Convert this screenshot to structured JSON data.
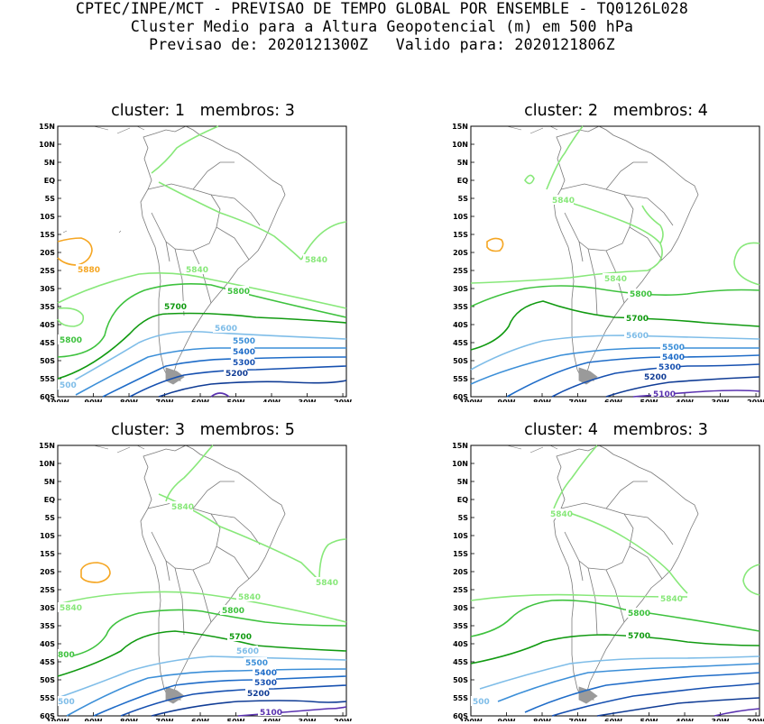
{
  "header": {
    "line1": "CPTEC/INPE/MCT - PREVISAO DE TEMPO GLOBAL POR ENSEMBLE - TQ0126L028",
    "line2": "Cluster Medio para a Altura Geopotencial (m) em 500 hPa",
    "line3": "Previsao de: 2020121300Z   Valido para: 2020121806Z"
  },
  "axes": {
    "lat_labels": [
      "15N",
      "10N",
      "5N",
      "EQ",
      "5S",
      "10S",
      "15S",
      "20S",
      "25S",
      "30S",
      "35S",
      "40S",
      "45S",
      "50S",
      "55S",
      "60S"
    ],
    "lon_labels": [
      "100W",
      "90W",
      "80W",
      "70W",
      "60W",
      "50W",
      "40W",
      "30W",
      "20W"
    ]
  },
  "colors": {
    "c5880": "#f5a623",
    "c5840": "#88e87a",
    "c5800": "#3ec23e",
    "c5700": "#119a11",
    "c5600": "#7fbde8",
    "c5500": "#3c8fd8",
    "c5400": "#1f6cc8",
    "c5300": "#1650b0",
    "c5200": "#103c95",
    "c5100": "#5a32b0",
    "coast": "#7a7a7a"
  },
  "panels": [
    {
      "title": "cluster: 1   membros: 3",
      "labels": {
        "l5880": "5880",
        "l5840a": "5840",
        "l5840b": "5840",
        "l5800a": "5800",
        "l5800b": "5800",
        "l5700": "5700",
        "l5600": "5600",
        "l5500": "5500",
        "l5400": "5400",
        "l5300": "5300",
        "l5200": "5200",
        "l500": "500"
      }
    },
    {
      "title": "cluster: 2   membros: 4",
      "labels": {
        "l5840a": "5840",
        "l5840b": "5840",
        "l5800": "5800",
        "l5700": "5700",
        "l5600": "5600",
        "l5500": "5500",
        "l5400": "5400",
        "l5300": "5300",
        "l5200": "5200",
        "l5100": "5100"
      }
    },
    {
      "title": "cluster: 3   membros: 5",
      "labels": {
        "l5840a": "5840",
        "l5840b": "5840",
        "l5840c": "5840",
        "l5840d": "5840",
        "l5800": "5800",
        "l5700": "5700",
        "l5600": "5600",
        "l5500": "5500",
        "l5400": "5400",
        "l5300": "5300",
        "l5200": "5200",
        "l5100": "5100",
        "l800": "800",
        "l500": "500"
      }
    },
    {
      "title": "cluster: 4   membros: 3",
      "labels": {
        "l5840a": "5840",
        "l5840b": "5840",
        "l5800": "5800",
        "l5700": "5700",
        "l500": "500"
      }
    }
  ]
}
